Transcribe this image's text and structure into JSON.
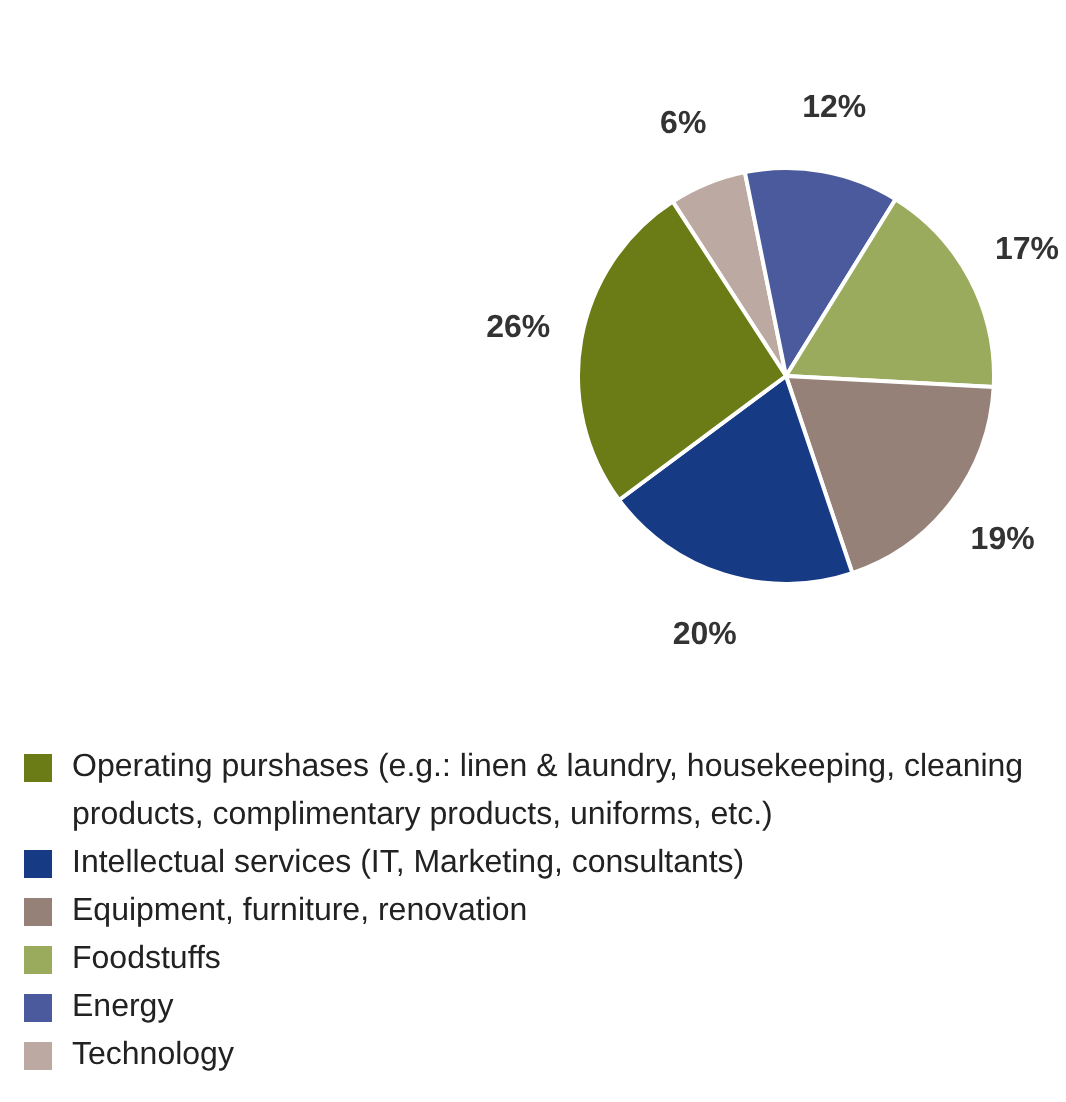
{
  "chart_data": {
    "type": "pie",
    "categories": [
      "Operating purshases (e.g.: linen & laundry, housekeeping, cleaning products, complimentary products, uniforms, etc.)",
      "Intellectual services (IT, Marketing, consultants)",
      "Equipment, furniture, renovation",
      "Foodstuffs",
      "Energy",
      "Technology"
    ],
    "values": [
      26,
      20,
      19,
      17,
      12,
      6
    ],
    "value_labels": [
      "26%",
      "20%",
      "19%",
      "17%",
      "12%",
      "6%"
    ],
    "colors": [
      "#6b7b16",
      "#173a85",
      "#958178",
      "#9aab5e",
      "#4b5a9c",
      "#bcaaa2"
    ],
    "legend": "bottom"
  }
}
